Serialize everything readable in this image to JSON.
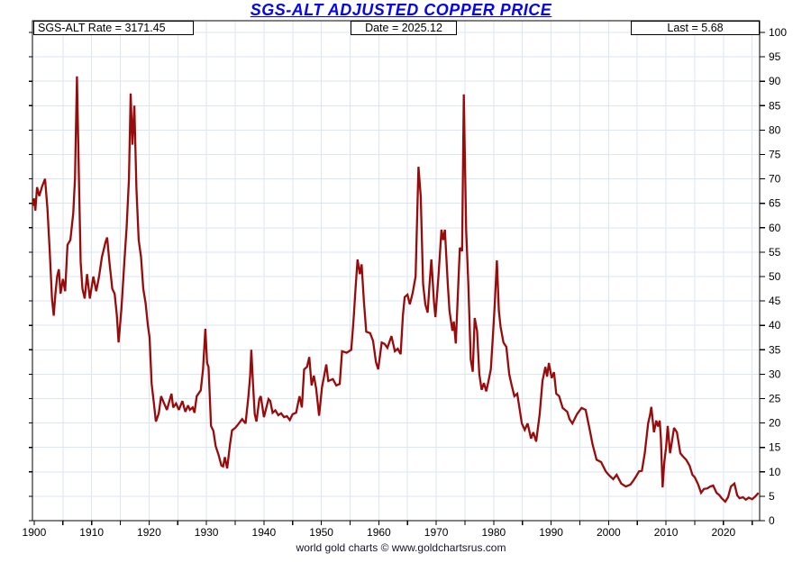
{
  "title": "SGS-ALT ADJUSTED COPPER PRICE",
  "header": {
    "rate_label": "SGS-ALT Rate = 3171.45",
    "date_label": "Date = 2025.12",
    "last_label": "Last = 5.68"
  },
  "footer": "world gold charts © www.goldchartsrus.com",
  "colors": {
    "line": "#990b0b",
    "grid": "#dbe6f4",
    "frame": "#000000",
    "title_text": "#0505ee",
    "footer_text": "#14142b",
    "tick_text": "#000000"
  },
  "chart_data": {
    "type": "line",
    "title": "SGS-ALT ADJUSTED COPPER PRICE",
    "xlabel": "",
    "ylabel": "",
    "xlim": [
      1899.7,
      2026.3
    ],
    "ylim": [
      0,
      102.4
    ],
    "x_ticks_labeled": [
      1900,
      1910,
      1920,
      1930,
      1940,
      1950,
      1960,
      1970,
      1980,
      1990,
      2000,
      2010,
      2020
    ],
    "x_minor_tick_step": 5,
    "y_ticks": [
      0,
      5,
      10,
      15,
      20,
      25,
      30,
      35,
      40,
      45,
      50,
      55,
      60,
      65,
      70,
      75,
      80,
      85,
      90,
      95,
      100
    ],
    "grid": true,
    "legend": false,
    "last_value": 5.68,
    "series": [
      {
        "name": "SGS-ALT Adjusted Copper Price",
        "color": "#990b0b",
        "points": [
          [
            1899.75,
            64.5
          ],
          [
            1900.0,
            66
          ],
          [
            1900.2,
            63.5
          ],
          [
            1900.5,
            68.3
          ],
          [
            1900.9,
            66.5
          ],
          [
            1901.4,
            68.5
          ],
          [
            1901.9,
            70
          ],
          [
            1902.3,
            64
          ],
          [
            1902.7,
            55.5
          ],
          [
            1903.1,
            45.5
          ],
          [
            1903.4,
            42
          ],
          [
            1903.7,
            46.5
          ],
          [
            1904.0,
            50
          ],
          [
            1904.3,
            51.5
          ],
          [
            1904.6,
            46.5
          ],
          [
            1905.0,
            49.5
          ],
          [
            1905.4,
            47
          ],
          [
            1905.8,
            56.5
          ],
          [
            1906.3,
            57.5
          ],
          [
            1906.8,
            63
          ],
          [
            1907.1,
            70
          ],
          [
            1907.45,
            91
          ],
          [
            1907.8,
            70
          ],
          [
            1908.1,
            53
          ],
          [
            1908.4,
            47.5
          ],
          [
            1908.8,
            45.5
          ],
          [
            1909.2,
            50.5
          ],
          [
            1909.7,
            45.5
          ],
          [
            1910.3,
            50
          ],
          [
            1910.8,
            47
          ],
          [
            1911.3,
            50
          ],
          [
            1911.8,
            54
          ],
          [
            1912.4,
            57
          ],
          [
            1912.7,
            58
          ],
          [
            1913.1,
            53
          ],
          [
            1913.6,
            47.5
          ],
          [
            1914.0,
            46.5
          ],
          [
            1914.4,
            42
          ],
          [
            1914.7,
            36.5
          ],
          [
            1915.2,
            43.5
          ],
          [
            1915.7,
            53
          ],
          [
            1916.1,
            60
          ],
          [
            1916.5,
            70
          ],
          [
            1916.8,
            87.5
          ],
          [
            1917.1,
            77
          ],
          [
            1917.45,
            85
          ],
          [
            1917.8,
            68
          ],
          [
            1918.2,
            57.5
          ],
          [
            1918.6,
            54
          ],
          [
            1919.0,
            47.5
          ],
          [
            1919.4,
            44.5
          ],
          [
            1919.8,
            40
          ],
          [
            1920.1,
            37.5
          ],
          [
            1920.45,
            28
          ],
          [
            1920.8,
            24.5
          ],
          [
            1921.2,
            20.3
          ],
          [
            1921.7,
            22
          ],
          [
            1922.1,
            25.5
          ],
          [
            1922.45,
            24.5
          ],
          [
            1923.1,
            22.7
          ],
          [
            1923.9,
            26
          ],
          [
            1924.2,
            23.2
          ],
          [
            1924.7,
            24
          ],
          [
            1925.2,
            22.7
          ],
          [
            1925.8,
            24.5
          ],
          [
            1926.3,
            22.3
          ],
          [
            1926.8,
            23.6
          ],
          [
            1927.1,
            22.7
          ],
          [
            1927.6,
            23.2
          ],
          [
            1927.9,
            22.1
          ],
          [
            1928.3,
            25.5
          ],
          [
            1929.0,
            26.7
          ],
          [
            1929.4,
            31
          ],
          [
            1929.8,
            39.3
          ],
          [
            1930.1,
            32.3
          ],
          [
            1930.35,
            31.5
          ],
          [
            1930.8,
            19.4
          ],
          [
            1931.2,
            18.4
          ],
          [
            1931.6,
            15.3
          ],
          [
            1932.1,
            13.5
          ],
          [
            1932.6,
            11.3
          ],
          [
            1932.9,
            11.1
          ],
          [
            1933.2,
            13
          ],
          [
            1933.6,
            10.7
          ],
          [
            1934.1,
            15.7
          ],
          [
            1934.45,
            18.5
          ],
          [
            1935.0,
            19
          ],
          [
            1935.5,
            19.7
          ],
          [
            1936.2,
            20.8
          ],
          [
            1936.8,
            19.9
          ],
          [
            1937.3,
            25.5
          ],
          [
            1937.6,
            29.7
          ],
          [
            1937.8,
            35
          ],
          [
            1938.1,
            27.9
          ],
          [
            1938.4,
            21.8
          ],
          [
            1938.7,
            20.3
          ],
          [
            1939.2,
            24.9
          ],
          [
            1939.45,
            25.5
          ],
          [
            1940.0,
            21.2
          ],
          [
            1940.8,
            24.9
          ],
          [
            1941.1,
            24.5
          ],
          [
            1941.5,
            22.1
          ],
          [
            1942.0,
            22.6
          ],
          [
            1942.5,
            21.6
          ],
          [
            1943.0,
            22
          ],
          [
            1943.5,
            21.2
          ],
          [
            1944.0,
            21.4
          ],
          [
            1944.5,
            20.6
          ],
          [
            1945.0,
            21.8
          ],
          [
            1945.6,
            22.1
          ],
          [
            1946.2,
            25.5
          ],
          [
            1946.6,
            23.2
          ],
          [
            1947.0,
            31
          ],
          [
            1947.5,
            31.5
          ],
          [
            1947.9,
            33.5
          ],
          [
            1948.3,
            27.7
          ],
          [
            1948.7,
            29.7
          ],
          [
            1949.1,
            27
          ],
          [
            1949.6,
            21.5
          ],
          [
            1950.1,
            27.3
          ],
          [
            1950.85,
            32
          ],
          [
            1951.2,
            28.6
          ],
          [
            1952.0,
            29
          ],
          [
            1952.6,
            27.7
          ],
          [
            1953.2,
            28
          ],
          [
            1953.6,
            34.7
          ],
          [
            1954.4,
            34.4
          ],
          [
            1955.2,
            35
          ],
          [
            1955.6,
            41
          ],
          [
            1956.0,
            48.5
          ],
          [
            1956.3,
            53.5
          ],
          [
            1956.7,
            50.5
          ],
          [
            1957.0,
            52.5
          ],
          [
            1957.4,
            45
          ],
          [
            1957.8,
            38.7
          ],
          [
            1958.5,
            38.4
          ],
          [
            1959.0,
            36.8
          ],
          [
            1959.5,
            32.5
          ],
          [
            1959.9,
            31
          ],
          [
            1960.5,
            36.5
          ],
          [
            1961.0,
            36.2
          ],
          [
            1961.5,
            35.4
          ],
          [
            1962.2,
            37.8
          ],
          [
            1962.8,
            34.7
          ],
          [
            1963.3,
            35.2
          ],
          [
            1963.8,
            34.1
          ],
          [
            1964.2,
            42
          ],
          [
            1964.5,
            45.8
          ],
          [
            1965.0,
            46.3
          ],
          [
            1965.4,
            44.3
          ],
          [
            1965.9,
            46.7
          ],
          [
            1966.4,
            50
          ],
          [
            1966.9,
            72.5
          ],
          [
            1967.3,
            66.4
          ],
          [
            1967.7,
            48.5
          ],
          [
            1968.1,
            44.3
          ],
          [
            1968.5,
            42.6
          ],
          [
            1968.8,
            48
          ],
          [
            1969.15,
            53.5
          ],
          [
            1969.6,
            44.8
          ],
          [
            1969.85,
            41.7
          ],
          [
            1970.4,
            50.4
          ],
          [
            1970.9,
            59.6
          ],
          [
            1971.2,
            57.5
          ],
          [
            1971.5,
            59.6
          ],
          [
            1972.0,
            48.5
          ],
          [
            1972.3,
            43
          ],
          [
            1972.8,
            38.9
          ],
          [
            1973.05,
            40.8
          ],
          [
            1973.4,
            36.3
          ],
          [
            1973.8,
            47.2
          ],
          [
            1974.1,
            55.9
          ],
          [
            1974.5,
            55.2
          ],
          [
            1974.8,
            87.3
          ],
          [
            1975.2,
            59.6
          ],
          [
            1975.6,
            48
          ],
          [
            1976.0,
            33
          ],
          [
            1976.35,
            30.5
          ],
          [
            1976.7,
            41.5
          ],
          [
            1977.1,
            38.9
          ],
          [
            1977.5,
            30
          ],
          [
            1977.9,
            26.8
          ],
          [
            1978.3,
            28.2
          ],
          [
            1978.7,
            26.5
          ],
          [
            1979.1,
            28.6
          ],
          [
            1979.5,
            31
          ],
          [
            1979.9,
            38.5
          ],
          [
            1980.2,
            44.5
          ],
          [
            1980.55,
            53.3
          ],
          [
            1980.9,
            43
          ],
          [
            1981.2,
            39.7
          ],
          [
            1981.7,
            36.5
          ],
          [
            1982.2,
            35.6
          ],
          [
            1982.7,
            30
          ],
          [
            1983.1,
            27.9
          ],
          [
            1983.6,
            25.5
          ],
          [
            1984.1,
            26
          ],
          [
            1984.9,
            19.9
          ],
          [
            1985.4,
            18.6
          ],
          [
            1985.9,
            19.9
          ],
          [
            1986.5,
            16.8
          ],
          [
            1986.9,
            18.1
          ],
          [
            1987.4,
            16.2
          ],
          [
            1988.0,
            21.8
          ],
          [
            1988.5,
            28.6
          ],
          [
            1989.0,
            31.5
          ],
          [
            1989.3,
            29.5
          ],
          [
            1989.6,
            32.3
          ],
          [
            1990.1,
            29.2
          ],
          [
            1990.5,
            30.4
          ],
          [
            1990.9,
            26
          ],
          [
            1991.4,
            25.5
          ],
          [
            1992.0,
            23.1
          ],
          [
            1992.8,
            22.3
          ],
          [
            1993.2,
            20.8
          ],
          [
            1993.7,
            19.9
          ],
          [
            1994.5,
            21.8
          ],
          [
            1995.3,
            23.1
          ],
          [
            1996.0,
            22.7
          ],
          [
            1996.8,
            18.1
          ],
          [
            1997.2,
            15.7
          ],
          [
            1997.9,
            12.5
          ],
          [
            1998.7,
            12
          ],
          [
            1999.5,
            10.1
          ],
          [
            2000.0,
            9.4
          ],
          [
            2000.8,
            8.5
          ],
          [
            2001.4,
            9.4
          ],
          [
            2002.2,
            7.6
          ],
          [
            2003.0,
            7
          ],
          [
            2003.8,
            7.4
          ],
          [
            2004.3,
            8.2
          ],
          [
            2004.7,
            8.9
          ],
          [
            2005.3,
            10.1
          ],
          [
            2005.8,
            10.2
          ],
          [
            2006.3,
            13.8
          ],
          [
            2006.9,
            20
          ],
          [
            2007.2,
            21.5
          ],
          [
            2007.45,
            23.3
          ],
          [
            2007.9,
            18.1
          ],
          [
            2008.3,
            20.5
          ],
          [
            2008.6,
            19.3
          ],
          [
            2008.9,
            20.5
          ],
          [
            2009.1,
            16.8
          ],
          [
            2009.4,
            6.8
          ],
          [
            2009.7,
            12
          ],
          [
            2010.0,
            14.9
          ],
          [
            2010.3,
            19.4
          ],
          [
            2010.7,
            13.8
          ],
          [
            2011.0,
            16
          ],
          [
            2011.4,
            19
          ],
          [
            2011.9,
            18.1
          ],
          [
            2012.5,
            13.8
          ],
          [
            2013.0,
            13.1
          ],
          [
            2013.5,
            12.5
          ],
          [
            2014.1,
            11.3
          ],
          [
            2014.6,
            9.4
          ],
          [
            2015.0,
            8.9
          ],
          [
            2015.6,
            7.4
          ],
          [
            2016.1,
            5.7
          ],
          [
            2016.6,
            6.5
          ],
          [
            2017.2,
            6.6
          ],
          [
            2017.7,
            7
          ],
          [
            2018.2,
            7.2
          ],
          [
            2018.8,
            5.7
          ],
          [
            2019.3,
            5.2
          ],
          [
            2019.7,
            4.6
          ],
          [
            2020.3,
            3.9
          ],
          [
            2020.8,
            4.8
          ],
          [
            2021.3,
            7
          ],
          [
            2021.9,
            7.6
          ],
          [
            2022.4,
            5.2
          ],
          [
            2022.8,
            4.6
          ],
          [
            2023.4,
            4.8
          ],
          [
            2023.9,
            4.3
          ],
          [
            2024.4,
            4.7
          ],
          [
            2025.0,
            4.4
          ],
          [
            2025.5,
            4.9
          ],
          [
            2026.1,
            5.68
          ]
        ]
      }
    ]
  }
}
